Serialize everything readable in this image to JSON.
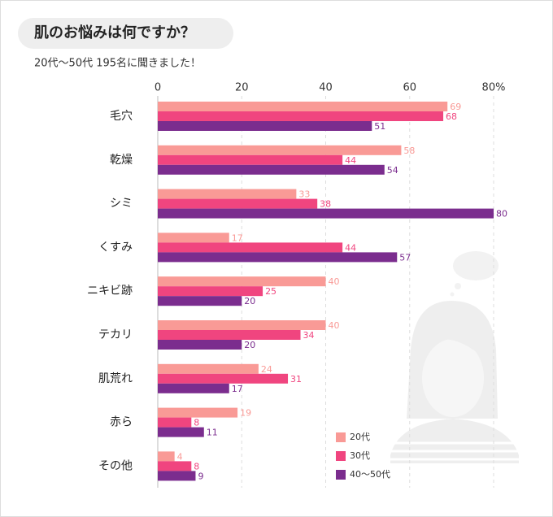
{
  "chart_data": {
    "type": "bar",
    "orientation": "horizontal",
    "title": "肌のお悩みは何ですか？",
    "subtitle": "20代〜50代 195名に聞きました！",
    "categories": [
      "毛穴",
      "乾燥",
      "シミ",
      "くすみ",
      "ニキビ跡",
      "テカリ",
      "肌荒れ",
      "赤ら",
      "その他"
    ],
    "series": [
      {
        "name": "20代",
        "color": "#f99a96",
        "values": [
          69,
          58,
          33,
          17,
          40,
          40,
          24,
          19,
          4
        ]
      },
      {
        "name": "30代",
        "color": "#f0457f",
        "values": [
          68,
          44,
          38,
          44,
          25,
          34,
          31,
          8,
          8
        ]
      },
      {
        "name": "40〜50代",
        "color": "#7b2d8e",
        "values": [
          51,
          54,
          80,
          57,
          20,
          20,
          17,
          11,
          9
        ]
      }
    ],
    "xlim": [
      0,
      80
    ],
    "xticks": [
      0,
      20,
      40,
      60,
      {
        "value": 80,
        "label": "80%"
      }
    ],
    "grid": true,
    "legend": "lower right"
  }
}
